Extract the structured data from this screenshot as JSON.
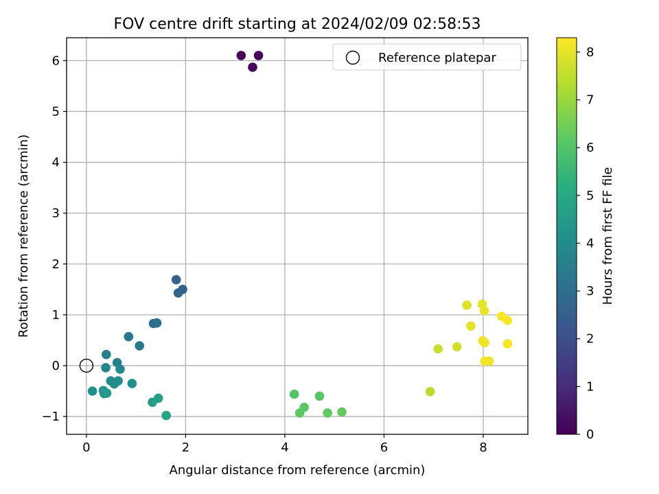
{
  "chart_data": {
    "type": "scatter",
    "title": "FOV centre drift starting at 2024/02/09 02:58:53",
    "xlabel": "Angular distance from reference (arcmin)",
    "ylabel": "Rotation from reference (arcmin)",
    "xlim": [
      -0.4,
      8.9
    ],
    "ylim": [
      -1.35,
      6.45
    ],
    "xticks": [
      0,
      2,
      4,
      6,
      8
    ],
    "yticks": [
      -1,
      0,
      1,
      2,
      3,
      4,
      5,
      6
    ],
    "grid": true,
    "legend": {
      "position": "top-right",
      "entries": [
        "Reference platepar"
      ]
    },
    "reference_point": {
      "x": 0,
      "y": 0,
      "label": "Reference platepar"
    },
    "colorbar": {
      "label": "Hours from first FF file",
      "range": [
        0,
        8.3
      ],
      "ticks": [
        0,
        1,
        2,
        3,
        4,
        5,
        6,
        7,
        8
      ],
      "colormap": "viridis"
    },
    "points": [
      {
        "x": 3.12,
        "y": 6.1,
        "c": 0.05
      },
      {
        "x": 3.47,
        "y": 6.1,
        "c": 0.1
      },
      {
        "x": 3.35,
        "y": 5.87,
        "c": 0.15
      },
      {
        "x": 1.81,
        "y": 1.69,
        "c": 2.5
      },
      {
        "x": 1.94,
        "y": 1.5,
        "c": 2.6
      },
      {
        "x": 1.85,
        "y": 1.43,
        "c": 2.7
      },
      {
        "x": 1.35,
        "y": 0.83,
        "c": 3.0
      },
      {
        "x": 1.42,
        "y": 0.84,
        "c": 3.05
      },
      {
        "x": 0.85,
        "y": 0.57,
        "c": 3.2
      },
      {
        "x": 1.07,
        "y": 0.39,
        "c": 3.3
      },
      {
        "x": 0.4,
        "y": 0.22,
        "c": 3.5
      },
      {
        "x": 0.62,
        "y": 0.06,
        "c": 3.6
      },
      {
        "x": 0.39,
        "y": -0.04,
        "c": 3.7
      },
      {
        "x": 0.68,
        "y": -0.07,
        "c": 3.8
      },
      {
        "x": 0.49,
        "y": -0.3,
        "c": 3.9
      },
      {
        "x": 0.64,
        "y": -0.3,
        "c": 4.0
      },
      {
        "x": 0.56,
        "y": -0.36,
        "c": 4.05
      },
      {
        "x": 0.92,
        "y": -0.35,
        "c": 4.1
      },
      {
        "x": 0.12,
        "y": -0.5,
        "c": 4.2
      },
      {
        "x": 0.34,
        "y": -0.49,
        "c": 4.25
      },
      {
        "x": 0.36,
        "y": -0.55,
        "c": 4.3
      },
      {
        "x": 0.41,
        "y": -0.54,
        "c": 4.35
      },
      {
        "x": 1.33,
        "y": -0.72,
        "c": 4.6
      },
      {
        "x": 1.45,
        "y": -0.64,
        "c": 4.7
      },
      {
        "x": 1.61,
        "y": -0.98,
        "c": 4.8
      },
      {
        "x": 4.19,
        "y": -0.56,
        "c": 6.0
      },
      {
        "x": 4.7,
        "y": -0.6,
        "c": 6.1
      },
      {
        "x": 4.39,
        "y": -0.82,
        "c": 6.15
      },
      {
        "x": 4.3,
        "y": -0.93,
        "c": 6.2
      },
      {
        "x": 4.86,
        "y": -0.93,
        "c": 6.25
      },
      {
        "x": 5.15,
        "y": -0.91,
        "c": 6.3
      },
      {
        "x": 6.93,
        "y": -0.51,
        "c": 7.4
      },
      {
        "x": 7.09,
        "y": 0.33,
        "c": 7.6
      },
      {
        "x": 7.47,
        "y": 0.37,
        "c": 7.7
      },
      {
        "x": 7.67,
        "y": 1.19,
        "c": 7.9
      },
      {
        "x": 7.75,
        "y": 0.78,
        "c": 7.95
      },
      {
        "x": 7.98,
        "y": 1.21,
        "c": 8.0
      },
      {
        "x": 8.02,
        "y": 1.08,
        "c": 8.05
      },
      {
        "x": 7.99,
        "y": 0.49,
        "c": 8.1
      },
      {
        "x": 8.03,
        "y": 0.45,
        "c": 8.1
      },
      {
        "x": 8.03,
        "y": 0.09,
        "c": 8.15
      },
      {
        "x": 8.12,
        "y": 0.09,
        "c": 8.15
      },
      {
        "x": 8.37,
        "y": 0.97,
        "c": 8.2
      },
      {
        "x": 8.49,
        "y": 0.89,
        "c": 8.25
      },
      {
        "x": 8.49,
        "y": 0.43,
        "c": 8.25
      }
    ]
  }
}
